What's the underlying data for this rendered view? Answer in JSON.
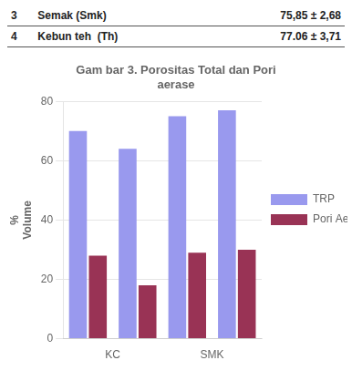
{
  "chart_data": {
    "type": "bar",
    "title": "Gam bar 3. Porositas Total dan Pori\naerase",
    "annotations": [
      [
        "3",
        "Semak (Smk)",
        "75,85 ± 2,68"
      ],
      [
        "4",
        "Kebun teh  (Th)",
        "77.06 ± 3,71"
      ]
    ],
    "categories": [
      "KC",
      null,
      "SMK",
      null
    ],
    "series": [
      {
        "name": "TRP",
        "color": "#9999EE",
        "values": [
          70,
          64,
          75,
          77
        ]
      },
      {
        "name": "Pori Aerase",
        "color": "#993355",
        "values": [
          28,
          18,
          29,
          30
        ]
      }
    ],
    "ylabel": "%\nVolume",
    "ylim": [
      0,
      80
    ],
    "yticks": [
      0,
      20,
      40,
      60,
      80
    ],
    "grid": true,
    "legend": "right"
  }
}
